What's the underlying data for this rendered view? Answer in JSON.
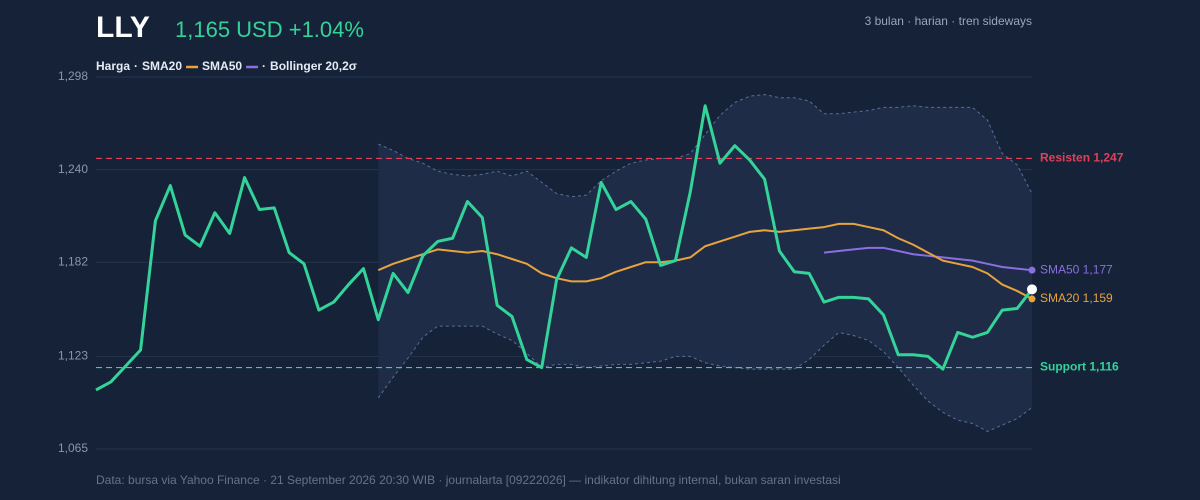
{
  "chart_data": {
    "type": "line",
    "title": "LLY",
    "price_text": "1,165 USD +1.04%",
    "subtitle": "3 bulan · harian · tren sideways",
    "legend_separator": "·",
    "footer": "Data: bursa via Yahoo Finance · 21 September 2026 20:30 WIB · journalarta [09222026] — indikator dihitung internal, bukan saran investasi",
    "ylim": [
      1065,
      1298
    ],
    "yticks": [
      {
        "value": 1065,
        "label": "1,065"
      },
      {
        "value": 1123,
        "label": "1,123"
      },
      {
        "value": 1182,
        "label": "1,182"
      },
      {
        "value": 1240,
        "label": "1,240"
      },
      {
        "value": 1298,
        "label": "1,298"
      }
    ],
    "grid": true,
    "series": [
      {
        "name": "Harga",
        "color": "#34d399",
        "values": [
          1102,
          1107,
          1117,
          1127,
          1208,
          1230,
          1199,
          1192,
          1213,
          1200,
          1235,
          1215,
          1216,
          1188,
          1181,
          1152,
          1157,
          1168,
          1178,
          1146,
          1175,
          1163,
          1186,
          1195,
          1197,
          1220,
          1210,
          1155,
          1148,
          1121,
          1116,
          1171,
          1191,
          1185,
          1232,
          1215,
          1220,
          1209,
          1180,
          1183,
          1226,
          1280,
          1244,
          1255,
          1246,
          1234,
          1189,
          1176,
          1175,
          1157,
          1160,
          1160,
          1159,
          1149,
          1124,
          1124,
          1123,
          1115,
          1138,
          1135,
          1138,
          1152,
          1153,
          1165
        ]
      },
      {
        "name": "SMA20",
        "color": "#e8a33d",
        "end_label": "SMA20 1,159",
        "values": [
          null,
          null,
          null,
          null,
          null,
          null,
          null,
          null,
          null,
          null,
          null,
          null,
          null,
          null,
          null,
          null,
          null,
          null,
          null,
          1177,
          1181,
          1184,
          1187,
          1190,
          1189,
          1188,
          1189,
          1187,
          1184,
          1181,
          1175,
          1172,
          1170,
          1170,
          1172,
          1176,
          1179,
          1182,
          1182,
          1183,
          1185,
          1192,
          1195,
          1198,
          1201,
          1202,
          1201,
          1202,
          1203,
          1204,
          1206,
          1206,
          1204,
          1202,
          1197,
          1193,
          1188,
          1183,
          1181,
          1179,
          1175,
          1168,
          1164,
          1159
        ]
      },
      {
        "name": "SMA50",
        "color": "#8b6fe0",
        "end_label": "SMA50 1,177",
        "values": [
          null,
          null,
          null,
          null,
          null,
          null,
          null,
          null,
          null,
          null,
          null,
          null,
          null,
          null,
          null,
          null,
          null,
          null,
          null,
          null,
          null,
          null,
          null,
          null,
          null,
          null,
          null,
          null,
          null,
          null,
          null,
          null,
          null,
          null,
          null,
          null,
          null,
          null,
          null,
          null,
          null,
          null,
          null,
          null,
          null,
          null,
          null,
          null,
          null,
          1188,
          1189,
          1190,
          1191,
          1191,
          1189,
          1187,
          1186,
          1185,
          1184,
          1183,
          1181,
          1179,
          1178,
          1177
        ]
      }
    ],
    "bollinger": {
      "name": "Bollinger 20,2σ",
      "color": "#5a6f94",
      "fill": "#1f2e4a",
      "upper": [
        null,
        null,
        null,
        null,
        null,
        null,
        null,
        null,
        null,
        null,
        null,
        null,
        null,
        null,
        null,
        null,
        null,
        null,
        null,
        1256,
        1252,
        1247,
        1244,
        1239,
        1237,
        1236,
        1237,
        1239,
        1236,
        1239,
        1232,
        1225,
        1223,
        1224,
        1233,
        1239,
        1244,
        1246,
        1247,
        1247,
        1250,
        1262,
        1274,
        1282,
        1286,
        1287,
        1285,
        1285,
        1283,
        1275,
        1275,
        1276,
        1277,
        1279,
        1279,
        1280,
        1279,
        1279,
        1279,
        1279,
        1271,
        1250,
        1243,
        1225
      ],
      "lower": [
        null,
        null,
        null,
        null,
        null,
        null,
        null,
        null,
        null,
        null,
        null,
        null,
        null,
        null,
        null,
        null,
        null,
        null,
        null,
        1097,
        1110,
        1122,
        1135,
        1142,
        1142,
        1142,
        1142,
        1137,
        1133,
        1125,
        1116,
        1118,
        1118,
        1116,
        1117,
        1118,
        1118,
        1119,
        1120,
        1123,
        1123,
        1119,
        1117,
        1116,
        1115,
        1115,
        1115,
        1115,
        1121,
        1130,
        1138,
        1136,
        1133,
        1126,
        1116,
        1105,
        1095,
        1088,
        1083,
        1081,
        1076,
        1080,
        1084,
        1091
      ]
    },
    "levels": [
      {
        "value": 1247,
        "label": "Resisten 1,247",
        "color": "#e0405a"
      },
      {
        "value": 1116,
        "label": "Support 1,116",
        "color": "#34d399"
      }
    ]
  }
}
